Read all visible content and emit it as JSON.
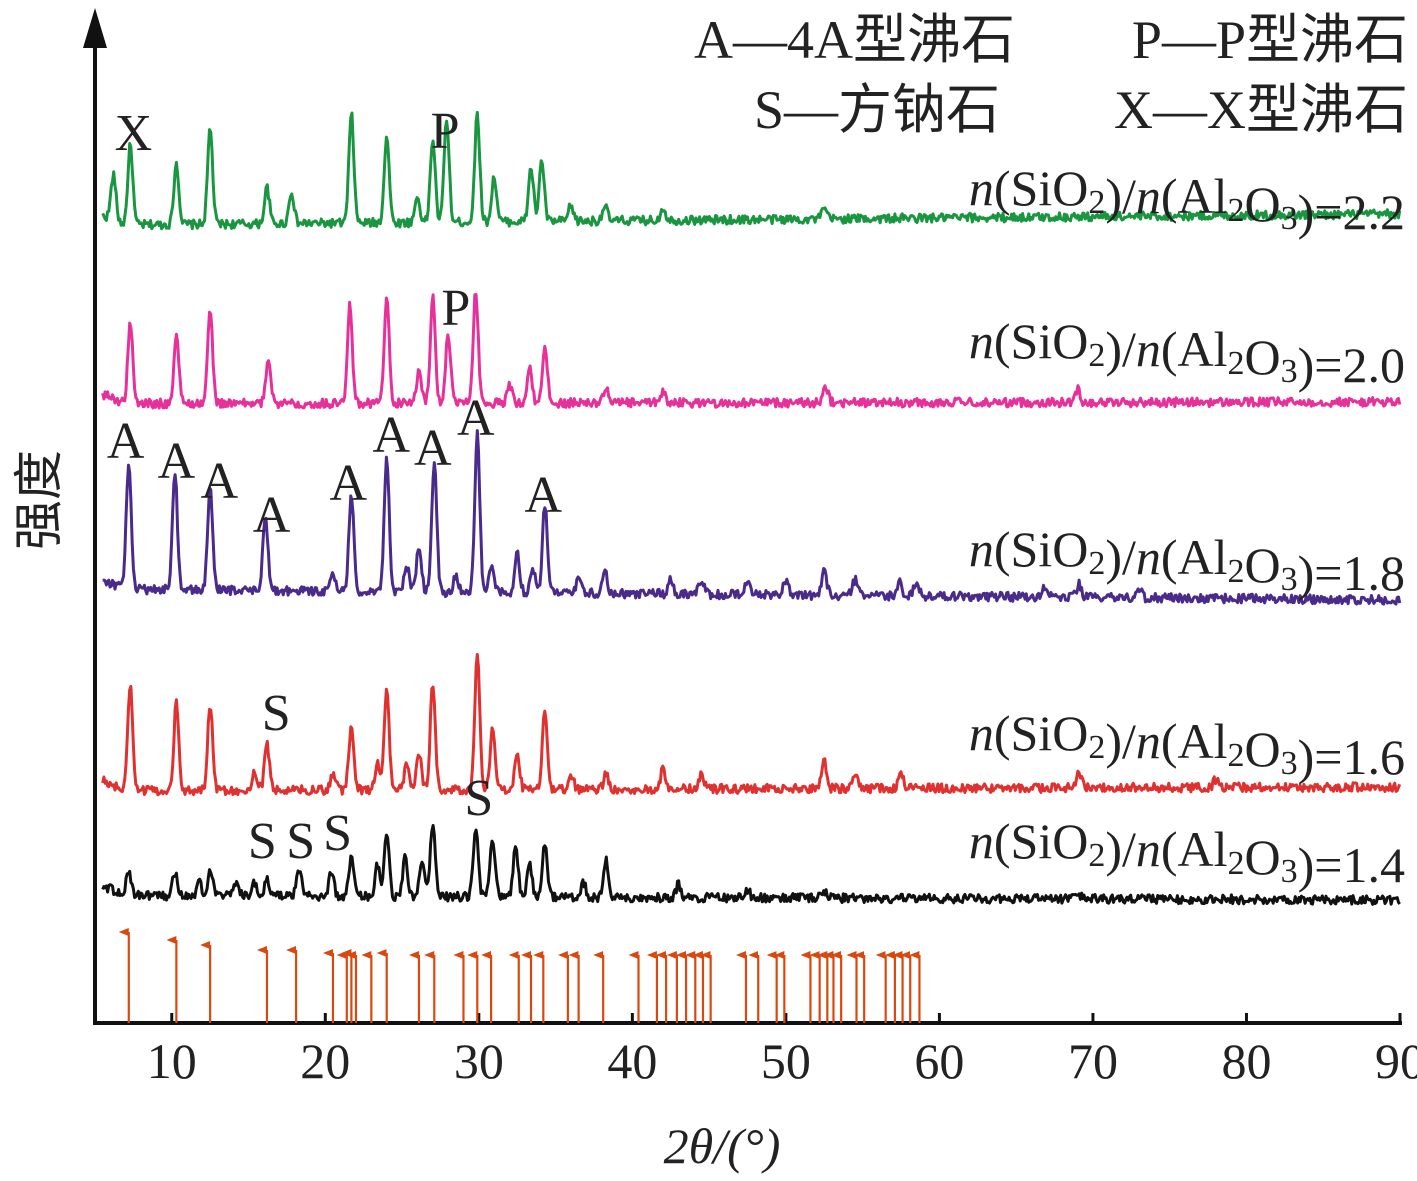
{
  "chart_data": {
    "type": "line",
    "xlabel": "2θ/(°)",
    "ylabel": "强度",
    "xlim": [
      5,
      90
    ],
    "x_ticks": [
      10,
      20,
      30,
      40,
      50,
      60,
      70,
      80,
      90
    ],
    "y_ticks": [],
    "grid": false,
    "legend_position": "top-right",
    "legend": [
      "A—4A型沸石",
      "P—P型沸石",
      "S—方钠石",
      "X—X型沸石"
    ],
    "series": [
      {
        "name": "n(SiO2)/n(Al2O3)=2.2",
        "color": "#1a9641",
        "baseline_start": 0.1,
        "baseline_end": 0.0,
        "peaks": [
          [
            6.2,
            0.35
          ],
          [
            7.3,
            0.62
          ],
          [
            10.3,
            0.48
          ],
          [
            12.5,
            0.75
          ],
          [
            16.2,
            0.28
          ],
          [
            17.8,
            0.25
          ],
          [
            21.7,
            0.85
          ],
          [
            24.0,
            0.68
          ],
          [
            26.0,
            0.2
          ],
          [
            27.0,
            0.65
          ],
          [
            27.9,
            0.82
          ],
          [
            29.9,
            0.85
          ],
          [
            31.0,
            0.35
          ],
          [
            33.4,
            0.42
          ],
          [
            34.1,
            0.48
          ],
          [
            36.0,
            0.12
          ],
          [
            38.2,
            0.12
          ],
          [
            42.0,
            0.1
          ],
          [
            52.5,
            0.08
          ]
        ]
      },
      {
        "name": "n(SiO2)/n(Al2O3)=2.0",
        "color": "#e6319b",
        "baseline_start": 0.05,
        "baseline_end": 0.0,
        "peaks": [
          [
            7.3,
            0.62
          ],
          [
            10.3,
            0.53
          ],
          [
            12.5,
            0.72
          ],
          [
            16.3,
            0.35
          ],
          [
            21.6,
            0.78
          ],
          [
            24.0,
            0.82
          ],
          [
            26.1,
            0.25
          ],
          [
            27.0,
            0.82
          ],
          [
            28.0,
            0.55
          ],
          [
            29.8,
            0.88
          ],
          [
            32.0,
            0.15
          ],
          [
            33.3,
            0.28
          ],
          [
            34.3,
            0.45
          ],
          [
            38.3,
            0.12
          ],
          [
            42.0,
            0.1
          ],
          [
            52.6,
            0.12
          ],
          [
            69.0,
            0.1
          ]
        ]
      },
      {
        "name": "n(SiO2)/n(Al2O3)=1.8",
        "color": "#4a2a8a",
        "baseline_start": 0.1,
        "baseline_end": 0.0,
        "peaks": [
          [
            7.2,
            1.0
          ],
          [
            10.2,
            0.93
          ],
          [
            12.5,
            0.8
          ],
          [
            16.1,
            0.57
          ],
          [
            20.5,
            0.12
          ],
          [
            21.7,
            0.75
          ],
          [
            24.0,
            1.05
          ],
          [
            25.3,
            0.2
          ],
          [
            26.1,
            0.35
          ],
          [
            27.1,
            1.02
          ],
          [
            28.5,
            0.12
          ],
          [
            29.9,
            1.23
          ],
          [
            30.8,
            0.22
          ],
          [
            32.5,
            0.3
          ],
          [
            33.5,
            0.2
          ],
          [
            34.3,
            0.68
          ],
          [
            36.5,
            0.12
          ],
          [
            38.2,
            0.2
          ],
          [
            42.5,
            0.12
          ],
          [
            44.5,
            0.12
          ],
          [
            47.5,
            0.12
          ],
          [
            50.0,
            0.12
          ],
          [
            52.5,
            0.18
          ],
          [
            54.5,
            0.12
          ],
          [
            57.4,
            0.1
          ],
          [
            58.5,
            0.1
          ],
          [
            66.8,
            0.08
          ],
          [
            69.1,
            0.1
          ],
          [
            73.0,
            0.08
          ]
        ]
      },
      {
        "name": "n(SiO2)/n(Al2O3)=1.6",
        "color": "#e03131",
        "baseline_start": 0.05,
        "baseline_end": 0.0,
        "peaks": [
          [
            7.3,
            0.82
          ],
          [
            10.3,
            0.68
          ],
          [
            12.5,
            0.67
          ],
          [
            15.4,
            0.15
          ],
          [
            16.2,
            0.35
          ],
          [
            20.5,
            0.12
          ],
          [
            21.7,
            0.52
          ],
          [
            23.4,
            0.2
          ],
          [
            24.0,
            0.78
          ],
          [
            25.3,
            0.2
          ],
          [
            26.1,
            0.3
          ],
          [
            27.0,
            0.83
          ],
          [
            29.9,
            1.08
          ],
          [
            30.9,
            0.48
          ],
          [
            32.5,
            0.25
          ],
          [
            34.3,
            0.6
          ],
          [
            36.0,
            0.12
          ],
          [
            38.3,
            0.12
          ],
          [
            42.0,
            0.15
          ],
          [
            44.5,
            0.12
          ],
          [
            52.5,
            0.22
          ],
          [
            54.5,
            0.12
          ],
          [
            57.5,
            0.1
          ],
          [
            69.1,
            0.12
          ],
          [
            78.0,
            0.06
          ]
        ]
      },
      {
        "name": "n(SiO2)/n(Al2O3)=1.4",
        "color": "#111111",
        "baseline_start": 0.05,
        "baseline_end": 0.0,
        "peaks": [
          [
            7.2,
            0.2
          ],
          [
            10.2,
            0.18
          ],
          [
            11.8,
            0.1
          ],
          [
            12.5,
            0.2
          ],
          [
            14.2,
            0.12
          ],
          [
            15.4,
            0.1
          ],
          [
            16.2,
            0.12
          ],
          [
            18.3,
            0.2
          ],
          [
            20.4,
            0.2
          ],
          [
            21.7,
            0.3
          ],
          [
            23.4,
            0.25
          ],
          [
            24.0,
            0.48
          ],
          [
            25.2,
            0.3
          ],
          [
            26.3,
            0.3
          ],
          [
            27.0,
            0.58
          ],
          [
            29.8,
            0.52
          ],
          [
            30.9,
            0.45
          ],
          [
            32.4,
            0.4
          ],
          [
            33.3,
            0.25
          ],
          [
            34.3,
            0.4
          ],
          [
            36.8,
            0.12
          ],
          [
            38.3,
            0.28
          ],
          [
            43.0,
            0.1
          ],
          [
            47.5,
            0.06
          ],
          [
            52.5,
            0.06
          ],
          [
            69.0,
            0.05
          ]
        ]
      }
    ],
    "reference_lines": {
      "color": "#d9480f",
      "x": [
        7.2,
        10.3,
        12.5,
        16.2,
        18.1,
        20.5,
        21.4,
        21.7,
        22.0,
        23.0,
        24.0,
        26.1,
        27.1,
        29.0,
        29.9,
        30.8,
        32.6,
        33.4,
        34.2,
        35.8,
        36.5,
        38.1,
        40.4,
        41.6,
        42.2,
        42.9,
        43.5,
        44.1,
        44.6,
        45.1,
        47.4,
        48.2,
        49.4,
        49.9,
        51.6,
        52.2,
        52.7,
        53.1,
        53.6,
        54.6,
        55.1,
        56.5,
        57.1,
        57.6,
        58.1,
        58.7
      ],
      "heights": [
        0.91,
        0.83,
        0.78,
        0.73,
        0.73,
        0.7,
        0.68,
        0.7,
        0.68,
        0.68,
        0.7,
        0.68,
        0.68,
        0.68,
        0.68,
        0.68,
        0.68,
        0.68,
        0.68,
        0.68,
        0.68,
        0.68,
        0.68,
        0.68,
        0.68,
        0.68,
        0.68,
        0.68,
        0.68,
        0.68,
        0.68,
        0.68,
        0.68,
        0.68,
        0.68,
        0.68,
        0.68,
        0.68,
        0.68,
        0.68,
        0.68,
        0.68,
        0.68,
        0.68,
        0.68,
        0.68
      ]
    },
    "peak_labels": [
      {
        "text": "X",
        "x": 7.5,
        "series": 0
      },
      {
        "text": "P",
        "x": 27.8,
        "series": 0
      },
      {
        "text": "P",
        "x": 28.5,
        "series": 1
      },
      {
        "text": "A",
        "x": 7.0,
        "series": 2
      },
      {
        "text": "A",
        "x": 10.3,
        "series": 2
      },
      {
        "text": "A",
        "x": 13.1,
        "series": 2
      },
      {
        "text": "A",
        "x": 16.5,
        "series": 2
      },
      {
        "text": "A",
        "x": 21.5,
        "series": 2
      },
      {
        "text": "A",
        "x": 24.3,
        "series": 2
      },
      {
        "text": "A",
        "x": 27.0,
        "series": 2
      },
      {
        "text": "A",
        "x": 29.8,
        "series": 2
      },
      {
        "text": "A",
        "x": 34.2,
        "series": 2
      },
      {
        "text": "S",
        "x": 16.8,
        "series": 3
      },
      {
        "text": "S",
        "x": 15.9,
        "series": 4
      },
      {
        "text": "S",
        "x": 18.4,
        "series": 4
      },
      {
        "text": "S",
        "x": 20.8,
        "series": 4
      },
      {
        "text": "S",
        "x": 30.0,
        "series": 4
      }
    ]
  }
}
